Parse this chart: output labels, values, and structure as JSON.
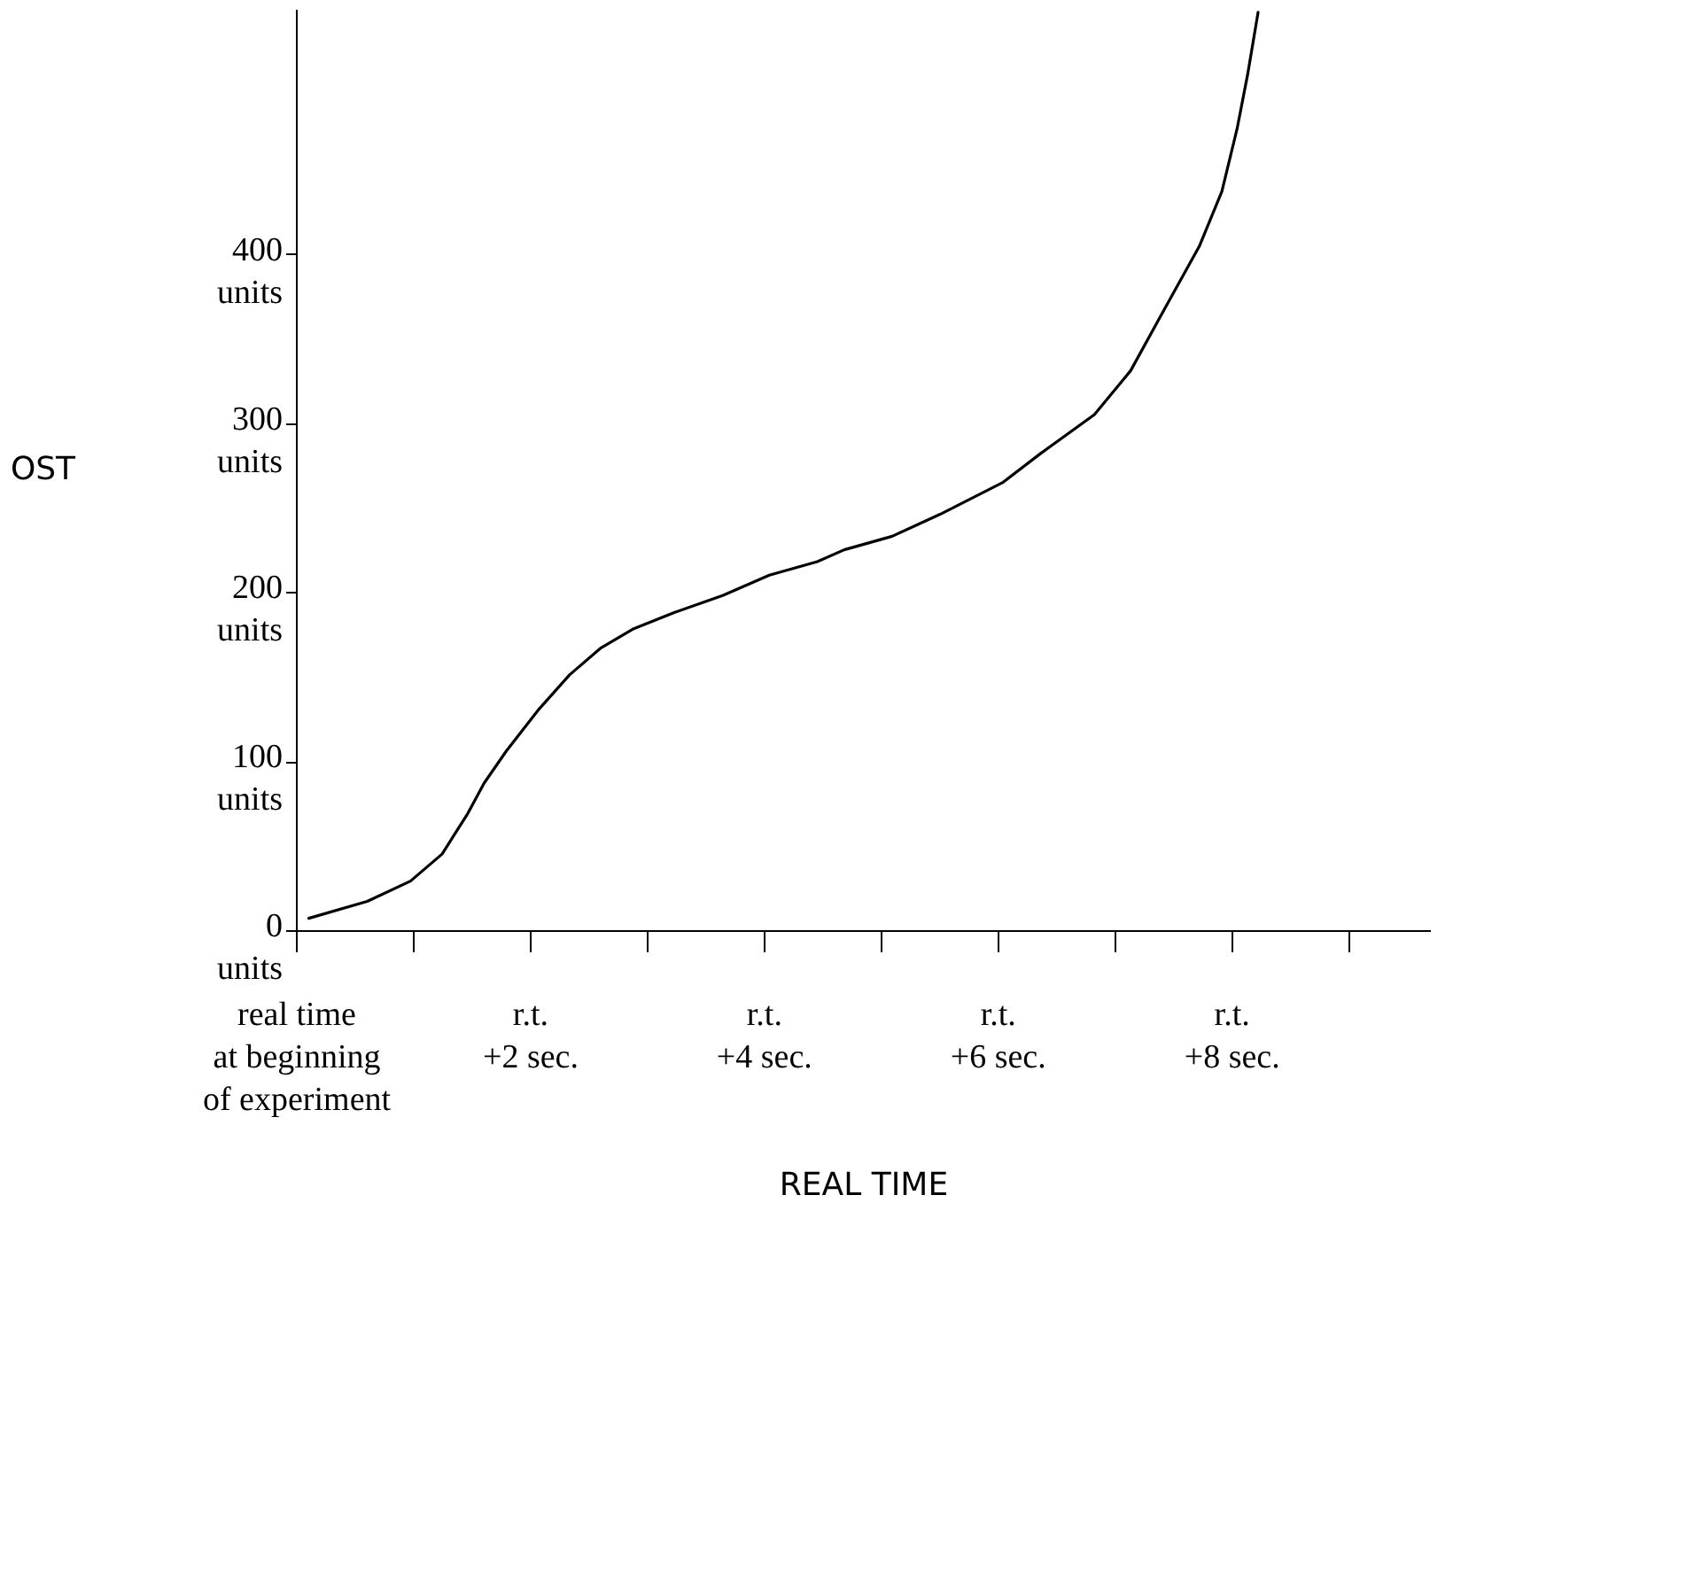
{
  "chart_data": {
    "type": "line",
    "xlabel": "REAL TIME",
    "ylabel": "OST",
    "x": [
      0.11,
      0.61,
      0.98,
      1.25,
      1.47,
      1.61,
      1.8,
      2.07,
      2.34,
      2.61,
      2.88,
      3.24,
      3.65,
      4.05,
      4.46,
      4.69,
      5.1,
      5.51,
      6.05,
      6.37,
      6.83,
      7.14,
      7.41,
      7.73,
      7.92,
      8.05,
      8.14,
      8.23
    ],
    "series": [
      {
        "color": "#000000",
        "values": [
          7,
          17,
          29,
          45,
          69,
          87,
          106,
          130,
          151,
          167,
          178,
          188,
          198,
          210,
          218,
          225,
          233,
          246,
          265,
          282,
          305,
          331,
          365,
          405,
          437,
          474,
          506,
          543
        ]
      }
    ],
    "xlim": [
      0,
      9.7
    ],
    "ylim": [
      0,
      545
    ],
    "xticks": [
      {
        "value": 0,
        "label": "real time\nat beginning\nof experiment"
      },
      {
        "value": 1,
        "label": null
      },
      {
        "value": 2,
        "label": "r.t.\n+2 sec."
      },
      {
        "value": 3,
        "label": null
      },
      {
        "value": 4,
        "label": "r.t.\n+4 sec."
      },
      {
        "value": 5,
        "label": null
      },
      {
        "value": 6,
        "label": "r.t.\n+6 sec."
      },
      {
        "value": 7,
        "label": null
      },
      {
        "value": 8,
        "label": "r.t.\n+8 sec."
      },
      {
        "value": 9,
        "label": null
      }
    ],
    "yticks": [
      {
        "value": 0,
        "label": "0\nunits"
      },
      {
        "value": 100,
        "label": "100\nunits"
      },
      {
        "value": 200,
        "label": "200\nunits"
      },
      {
        "value": 300,
        "label": "300\nunits"
      },
      {
        "value": 400,
        "label": "400\nunits"
      }
    ],
    "grid": false,
    "marker": "none",
    "line_style": "solid"
  }
}
